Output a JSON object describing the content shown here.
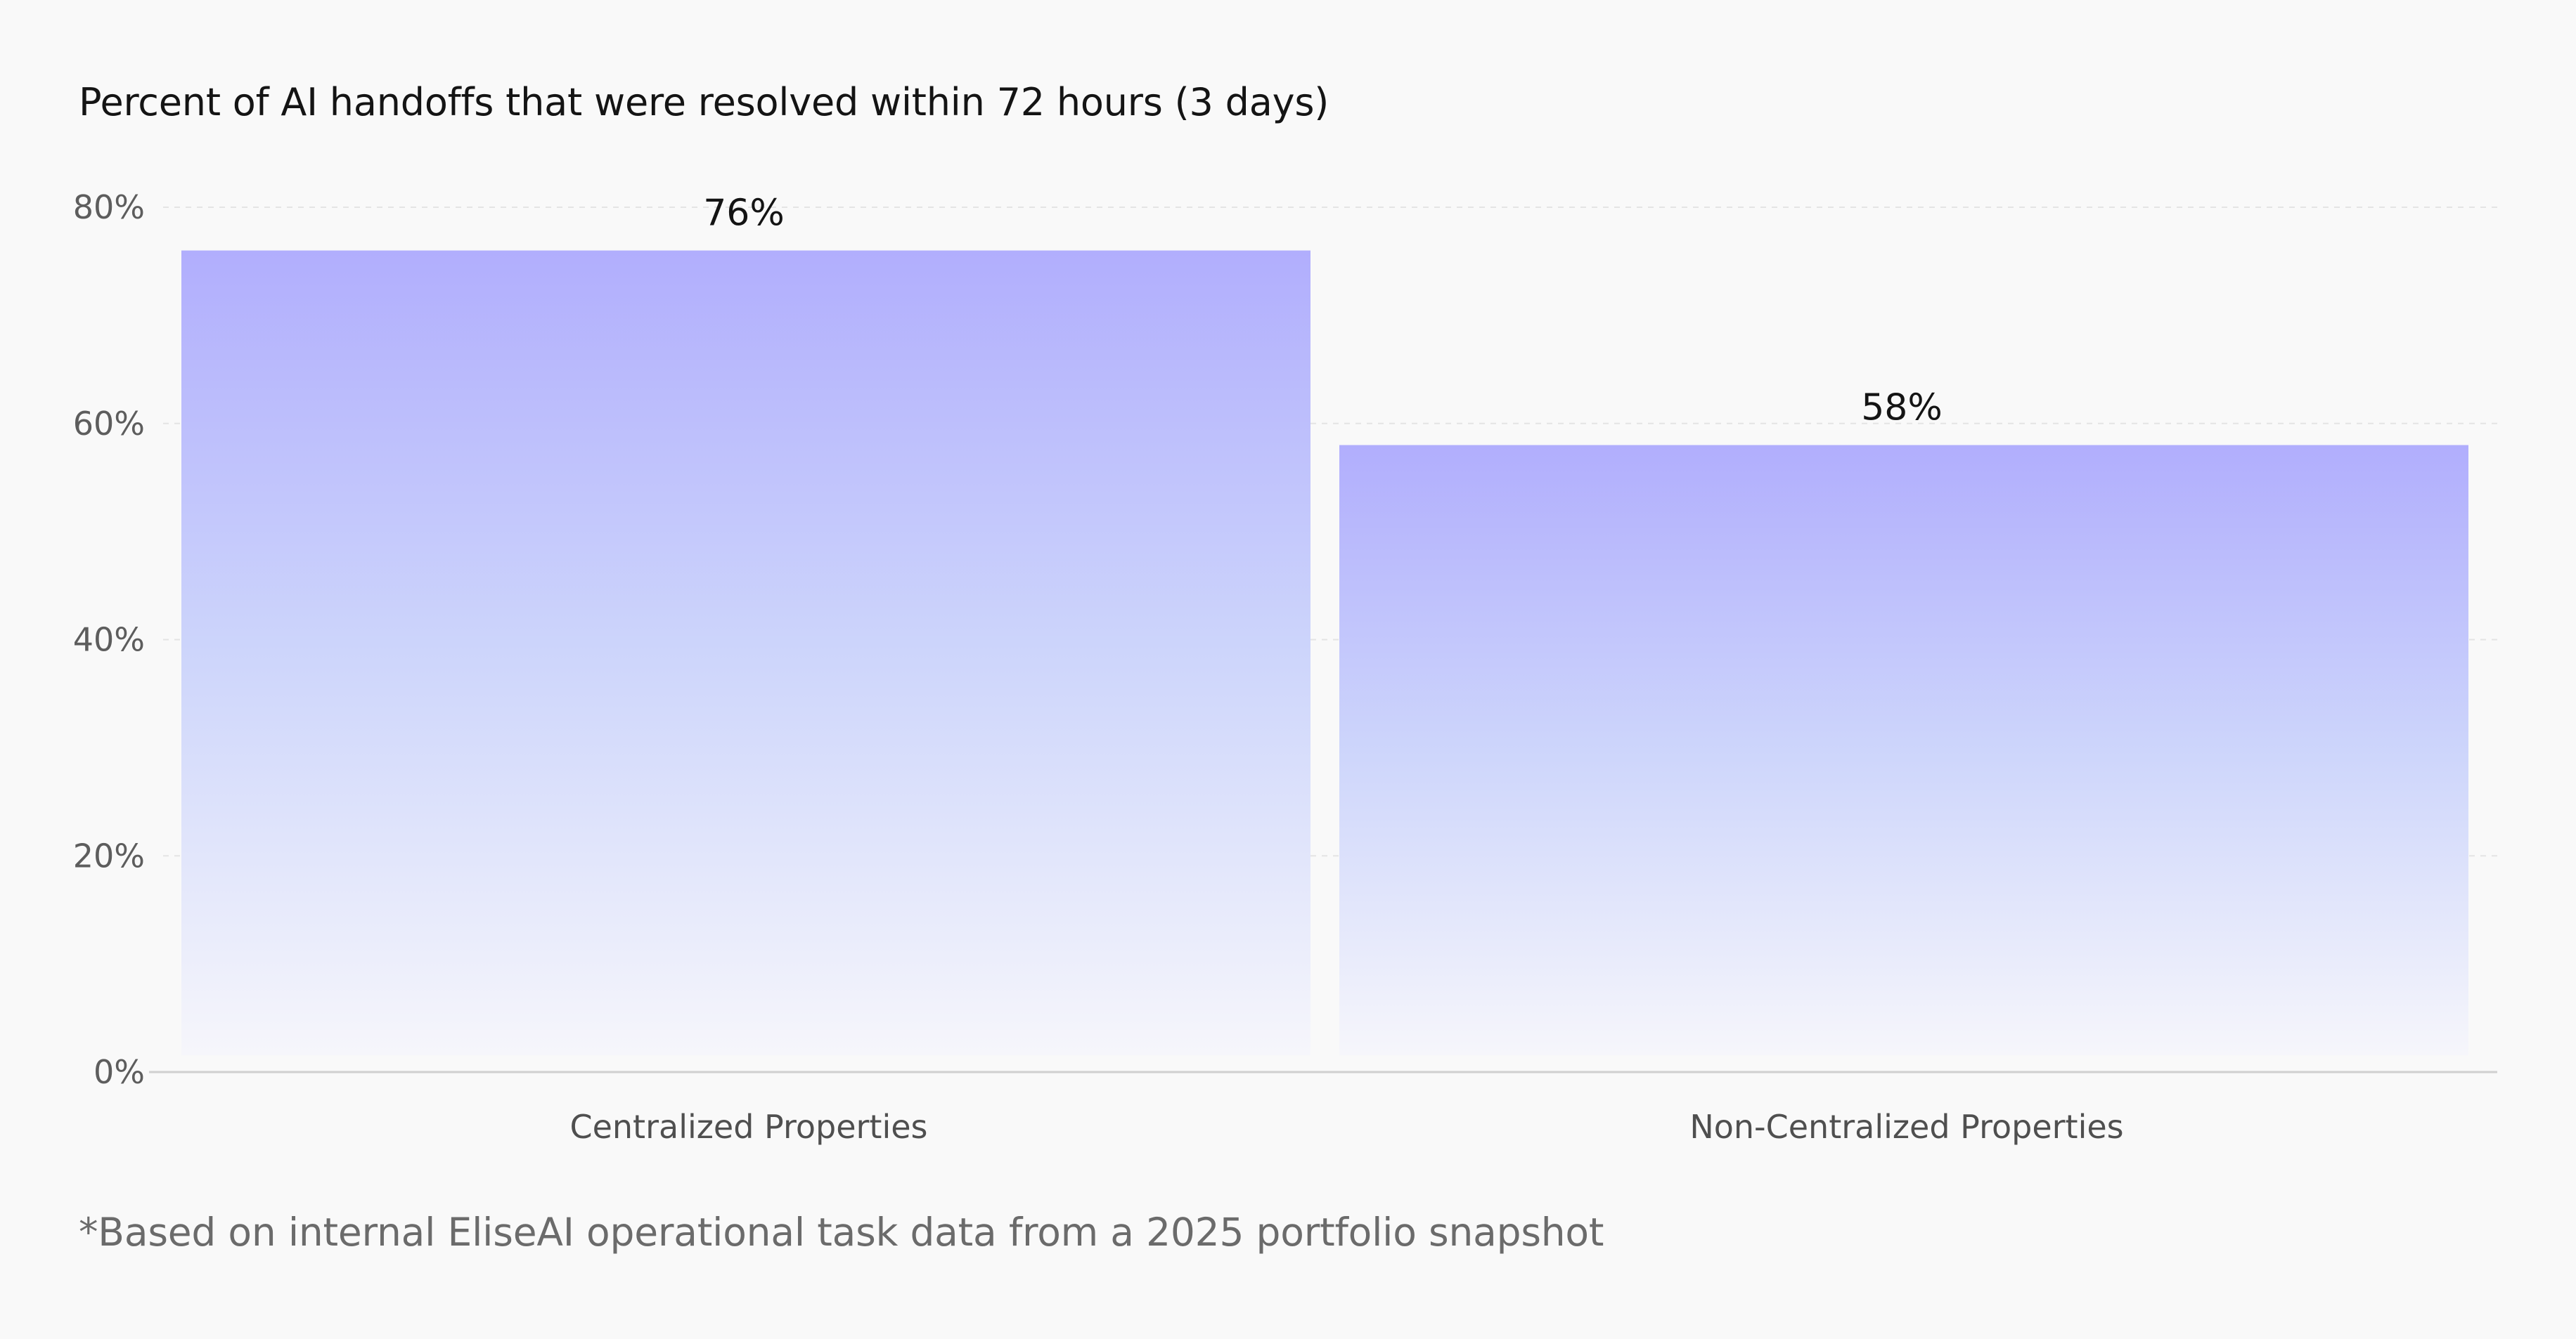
{
  "title": "Percent of AI handoffs that were resolved within 72 hours (3 days)",
  "footnote": "*Based on internal EliseAI operational task data from a 2025 portfolio snapshot",
  "colors": {
    "background": "#f9f9f9",
    "bar_top": "#b1aefd",
    "bar_mid": "#cdd5fb",
    "bar_bottom": "#f6f6fb",
    "grid": "#e4e4e4",
    "axis": "#d0d0d0"
  },
  "chart_data": {
    "type": "bar",
    "title": "Percent of AI handoffs that were resolved within 72 hours (3 days)",
    "categories": [
      "Centralized Properties",
      "Non-Centralized Properties"
    ],
    "values": [
      76,
      58
    ],
    "data_labels": [
      "76%",
      "58%"
    ],
    "xlabel": "",
    "ylabel": "",
    "ylim": [
      0,
      80
    ],
    "yticks": [
      0,
      20,
      40,
      60,
      80
    ],
    "ytick_labels": [
      "0%",
      "20%",
      "40%",
      "60%",
      "80%"
    ],
    "grid": true,
    "legend": "none"
  }
}
